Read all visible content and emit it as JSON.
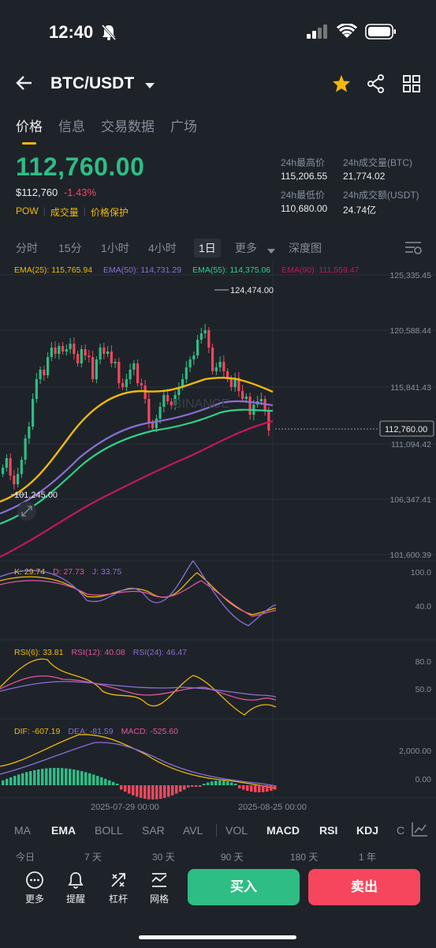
{
  "status": {
    "time": "12:40"
  },
  "header": {
    "pair": "BTC/USDT"
  },
  "tabs": [
    "价格",
    "信息",
    "交易数据",
    "广场"
  ],
  "ticker": {
    "price": "112,760.00",
    "usd": "$112,760",
    "change": "-1.43%",
    "tags": [
      "POW",
      "成交量",
      "价格保护"
    ],
    "high_label": "24h最高价",
    "high": "115,206.55",
    "low_label": "24h最低价",
    "low": "110,680.00",
    "vol_btc_label": "24h成交量(BTC)",
    "vol_btc": "21,774.02",
    "vol_usdt_label": "24h成交额(USDT)",
    "vol_usdt": "24.74亿"
  },
  "timeframes": [
    "分时",
    "15分",
    "1小时",
    "4小时",
    "1日",
    "更多",
    "深度图"
  ],
  "ema": {
    "e25": "EMA(25): 115,765.94",
    "e50": "EMA(50): 114,731.29",
    "e55": "EMA(55): 114,375.06",
    "e90": "EMA(90): 111,559.47"
  },
  "chart_data": {
    "type": "candlestick",
    "price_axis": [
      "125,335.45",
      "120,588.44",
      "115,841.43",
      "111,094.42",
      "106,347.41",
      "101,600.39"
    ],
    "current_price_label": "112,760.00",
    "high_marker": "124,474.00",
    "low_marker": "101,245.00",
    "watermark": "BINANCE",
    "x_labels": [
      "2025-07-29 00:00",
      "2025-08-25 00:00"
    ],
    "colors": {
      "up": "#2ebd85",
      "down": "#f6465d",
      "ema25": "#f0b90b",
      "ema50": "#8b6fd6",
      "ema55": "#2ed18a",
      "ema90": "#c2185b"
    }
  },
  "kdj": {
    "k": "K: 29.74",
    "d": "D: 27.73",
    "j": "J: 33.75",
    "axis": [
      "100.0",
      "40.0"
    ]
  },
  "rsi": {
    "r6": "RSI(6): 33.81",
    "r12": "RSI(12): 40.08",
    "r24": "RSI(24): 46.47",
    "axis": [
      "80.0",
      "50.0"
    ]
  },
  "macd": {
    "dif": "DIF: -607.19",
    "dea": "DEA: -81.59",
    "macd": "MACD: -525.60",
    "axis": [
      "2,000.00",
      "0.00"
    ]
  },
  "indicators": [
    "MA",
    "EMA",
    "BOLL",
    "SAR",
    "AVL",
    "VOL",
    "MACD",
    "RSI",
    "KDJ",
    "C"
  ],
  "ranges": [
    "今日",
    "7 天",
    "30 天",
    "90 天",
    "180 天",
    "1 年"
  ],
  "bottom": {
    "more": "更多",
    "alert": "提醒",
    "leverage": "杠杆",
    "grid": "网格",
    "buy": "买入",
    "sell": "卖出"
  }
}
